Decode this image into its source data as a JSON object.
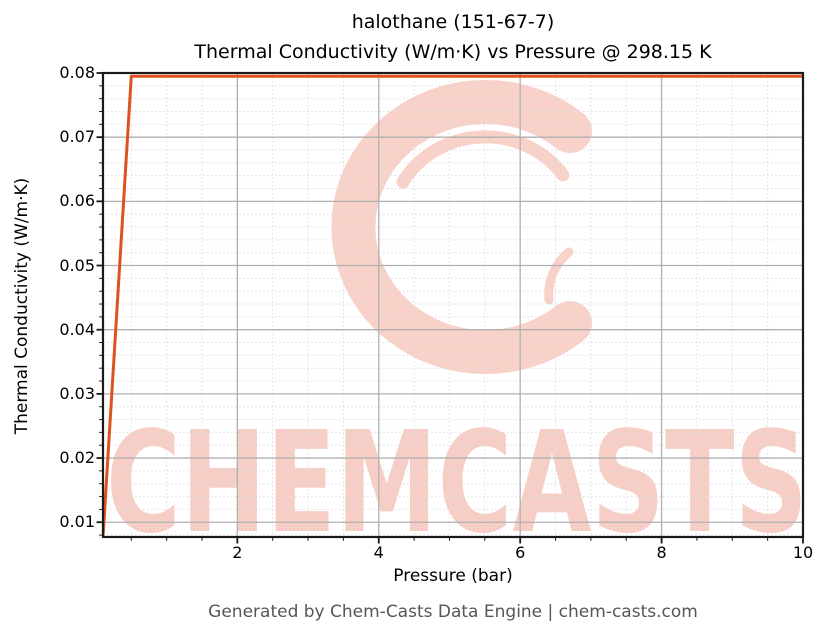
{
  "title": {
    "line1": "halothane (151-67-7)",
    "line2": "Thermal Conductivity (W/m·K) vs Pressure @ 298.15 K"
  },
  "footer": "Generated by Chem-Casts Data Engine | chem-casts.com",
  "watermark": {
    "text": "CHEMCASTS",
    "logo": "brush-stroke-c-swirl",
    "logo_color": "#f8d2c9",
    "text_color": "#f7cec6"
  },
  "colors": {
    "line": "#dd5221",
    "grid_major": "#b0b0b0",
    "grid_minor": "#dcdcdc",
    "spine": "#1a1a1a",
    "tick": "#1a1a1a",
    "footer_text": "#565656",
    "background": "#ffffff"
  },
  "chart_data": {
    "type": "line",
    "title": "halothane (151-67-7) — Thermal Conductivity (W/m·K) vs Pressure @ 298.15 K",
    "xlabel": "Pressure (bar)",
    "ylabel": "Thermal Conductivity (W/m·K)",
    "xlim": [
      0.1,
      10
    ],
    "ylim": [
      0.0077,
      0.08
    ],
    "xticks": [
      2,
      4,
      6,
      8,
      10
    ],
    "xtick_labels": [
      "2",
      "4",
      "6",
      "8",
      "10"
    ],
    "yticks": [
      0.01,
      0.02,
      0.03,
      0.04,
      0.05,
      0.06,
      0.07,
      0.08
    ],
    "ytick_labels": [
      "0.01",
      "0.02",
      "0.03",
      "0.04",
      "0.05",
      "0.06",
      "0.07",
      "0.08"
    ],
    "x_minor_step": 0.5,
    "y_minor_step": 0.002,
    "grid": {
      "major": true,
      "minor": true,
      "minor_style": "dashed"
    },
    "legend": "none",
    "series": [
      {
        "name": "Thermal Conductivity",
        "color": "#dd5221",
        "line_width": 3,
        "x": [
          0.1,
          0.5,
          1,
          2,
          3,
          4,
          5,
          6,
          7,
          8,
          9,
          10
        ],
        "y": [
          0.0077,
          0.0795,
          0.0795,
          0.0795,
          0.0795,
          0.0795,
          0.0795,
          0.0795,
          0.0795,
          0.0795,
          0.0795,
          0.0795
        ]
      }
    ]
  }
}
